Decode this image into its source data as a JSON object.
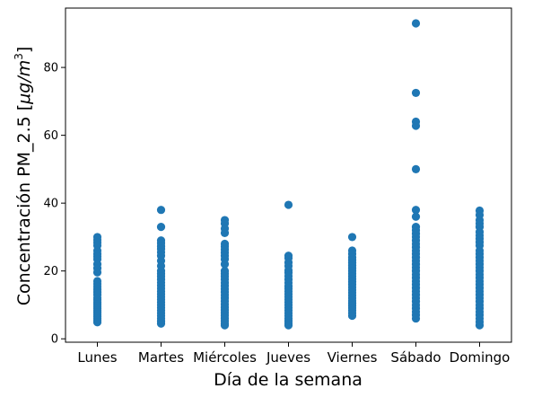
{
  "chart_data": {
    "type": "scatter",
    "title": "",
    "xlabel": "Día de la semana",
    "ylabel_main": "Concentración PM_2.5 [",
    "ylabel_math": "μg/m",
    "ylabel_sup": "3",
    "ylabel_end": "]",
    "categories": [
      "Lunes",
      "Martes",
      "Miércoles",
      "Jueves",
      "Viernes",
      "Sábado",
      "Domingo"
    ],
    "yticks": [
      0,
      20,
      40,
      60,
      80
    ],
    "ylim": [
      -1,
      97.5
    ],
    "grid": false,
    "marker_color": "#1f77b4",
    "series": [
      {
        "values": [
          [
            30.0,
            29.2,
            28.4,
            27.5,
            26.0,
            25.0,
            24.3,
            23.5,
            22.0,
            20.8,
            19.6,
            17.0,
            16.2,
            15.4,
            14.6,
            13.8,
            13.0,
            12.1,
            11.5,
            10.8,
            10.2,
            9.6,
            9.0,
            8.4,
            7.8,
            7.2,
            6.6,
            6.0,
            5.5,
            4.9
          ],
          [
            38.0,
            33.0,
            29.0,
            28.2,
            27.3,
            26.5,
            25.5,
            24.5,
            23.0,
            21.5,
            20.0,
            19.2,
            18.4,
            17.5,
            16.6,
            15.7,
            14.9,
            14.0,
            13.2,
            12.4,
            11.6,
            10.8,
            10.0,
            9.2,
            8.4,
            7.6,
            6.8,
            6.0,
            5.2,
            4.5
          ],
          [
            35.0,
            34.0,
            32.5,
            31.2,
            28.0,
            27.2,
            26.3,
            25.4,
            24.5,
            23.5,
            22.0,
            20.0,
            19.2,
            18.4,
            17.5,
            16.5,
            15.6,
            14.7,
            13.8,
            12.9,
            12.0,
            11.1,
            10.2,
            9.3,
            8.5,
            7.7,
            6.9,
            6.1,
            5.3,
            4.5,
            4.0
          ],
          [
            39.5,
            24.5,
            23.8,
            22.5,
            21.5,
            20.2,
            19.5,
            18.5,
            17.5,
            16.5,
            15.5,
            14.8,
            14.0,
            13.2,
            12.4,
            11.6,
            10.8,
            10.0,
            9.2,
            8.4,
            7.6,
            6.8,
            6.0,
            5.3,
            4.6,
            4.0
          ],
          [
            30.0,
            26.0,
            25.0,
            24.0,
            23.2,
            22.4,
            21.6,
            20.8,
            20.0,
            19.2,
            18.4,
            17.6,
            16.8,
            16.0,
            15.2,
            14.4,
            13.6,
            12.8,
            12.0,
            11.2,
            10.5,
            9.8,
            9.1,
            8.4,
            7.6,
            6.8
          ],
          [
            93.0,
            72.5,
            64.0,
            62.8,
            50.0,
            38.0,
            36.0,
            33.0,
            32.0,
            31.0,
            30.0,
            29.0,
            28.0,
            27.0,
            26.0,
            25.0,
            24.0,
            23.0,
            22.0,
            21.0,
            20.0,
            19.0,
            18.0,
            17.0,
            16.0,
            15.0,
            14.0,
            13.0,
            12.0,
            11.0,
            10.0,
            9.0,
            8.0,
            7.0,
            6.0
          ],
          [
            37.8,
            36.5,
            35.0,
            34.0,
            33.0,
            31.5,
            30.5,
            29.5,
            28.5,
            27.5,
            26.0,
            25.0,
            24.0,
            23.0,
            22.0,
            21.0,
            20.0,
            19.0,
            18.0,
            17.0,
            16.0,
            15.0,
            14.0,
            13.0,
            12.0,
            11.0,
            10.0,
            9.0,
            8.0,
            7.0,
            6.0,
            5.0,
            4.0
          ]
        ]
      }
    ]
  }
}
